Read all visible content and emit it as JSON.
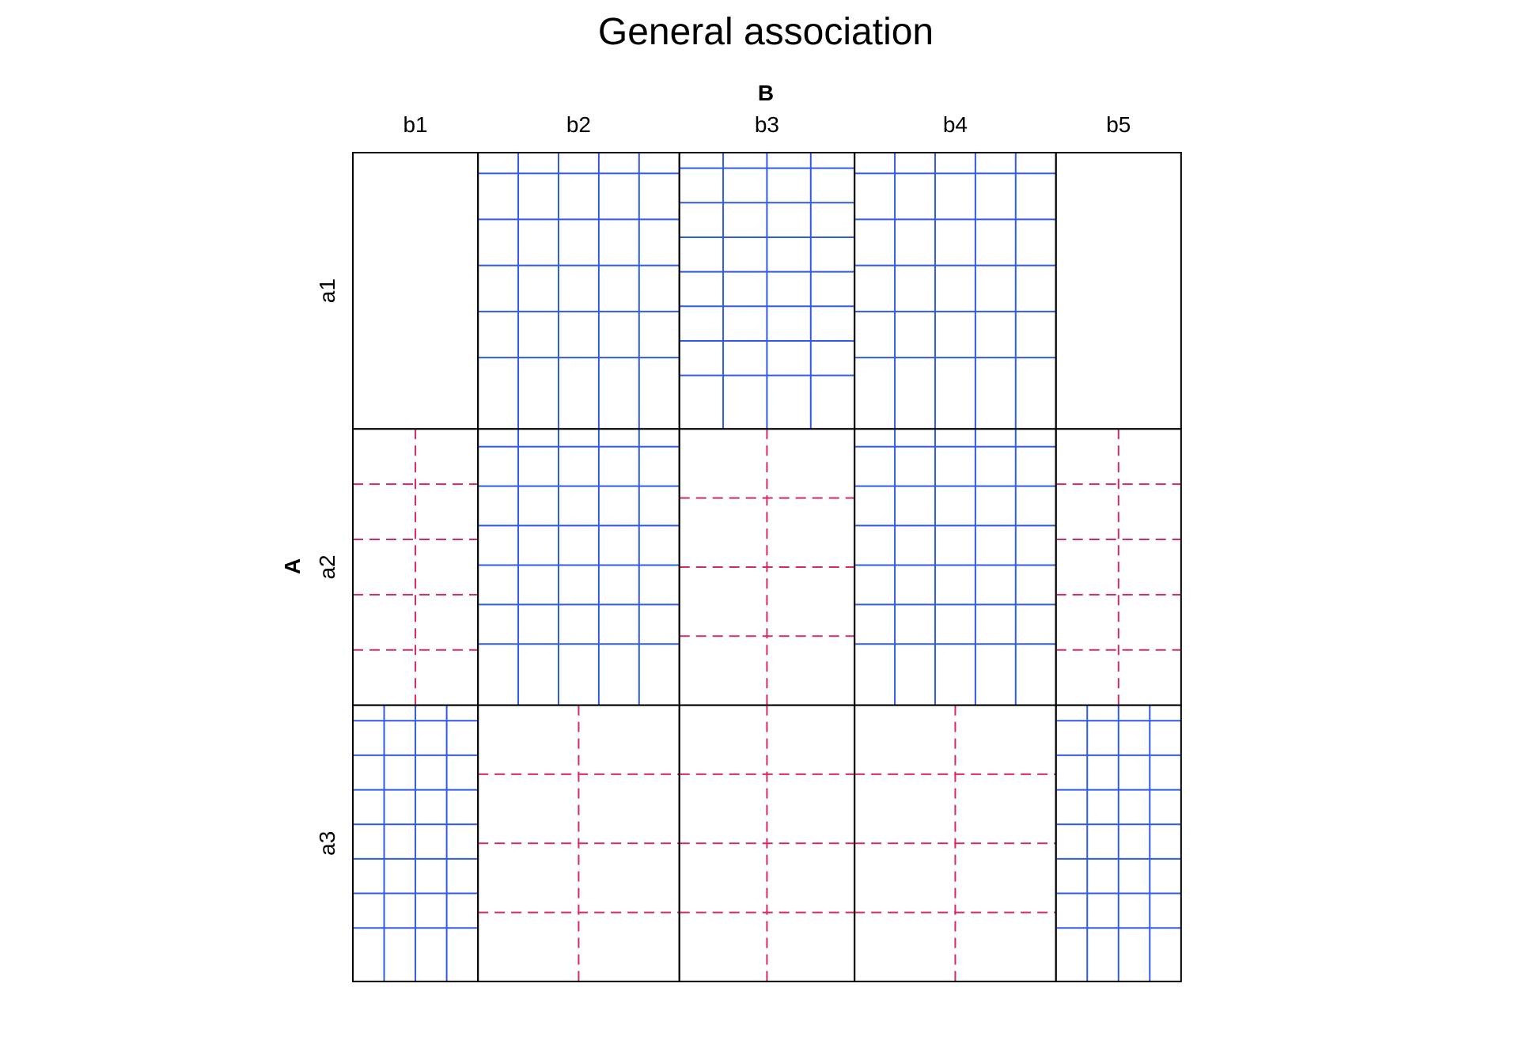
{
  "chart_data": {
    "type": "sieve",
    "title": "General association",
    "col_variable": "B",
    "row_variable": "A",
    "col_levels": [
      "b1",
      "b2",
      "b3",
      "b4",
      "b5"
    ],
    "row_levels": [
      "a1",
      "a2",
      "a3"
    ],
    "col_proportions": [
      0.1509,
      0.2429,
      0.2113,
      0.2429,
      0.1509
    ],
    "row_proportions": [
      0.3333,
      0.3333,
      0.3333
    ],
    "cells": [
      [
        {
          "lines": 0,
          "style": "empty"
        },
        {
          "lines": 16,
          "style": "solid",
          "grid": [
            4,
            5
          ]
        },
        {
          "lines": 18,
          "style": "solid",
          "grid": [
            3,
            7
          ]
        },
        {
          "lines": 16,
          "style": "solid",
          "grid": [
            4,
            5
          ]
        },
        {
          "lines": 0,
          "style": "empty"
        }
      ],
      [
        {
          "lines": 3,
          "style": "dashed",
          "grid": [
            2,
            4
          ]
        },
        {
          "lines": 15,
          "style": "solid",
          "grid": [
            4,
            6
          ]
        },
        {
          "lines": 5,
          "style": "dashed",
          "grid": [
            2,
            3
          ]
        },
        {
          "lines": 15,
          "style": "solid",
          "grid": [
            4,
            6
          ]
        },
        {
          "lines": 3,
          "style": "dashed",
          "grid": [
            2,
            4
          ]
        }
      ],
      [
        {
          "lines": 14,
          "style": "solid",
          "grid": [
            3,
            7
          ]
        },
        {
          "lines": 5,
          "style": "dashed",
          "grid": [
            2,
            3
          ]
        },
        {
          "lines": 5,
          "style": "dashed",
          "grid": [
            2,
            3
          ]
        },
        {
          "lines": 5,
          "style": "dashed",
          "grid": [
            2,
            3
          ]
        },
        {
          "lines": 14,
          "style": "solid",
          "grid": [
            3,
            7
          ]
        }
      ]
    ],
    "colors": {
      "positive": "#2e5ce6",
      "negative": "#d62a5e",
      "border": "#000000"
    }
  }
}
